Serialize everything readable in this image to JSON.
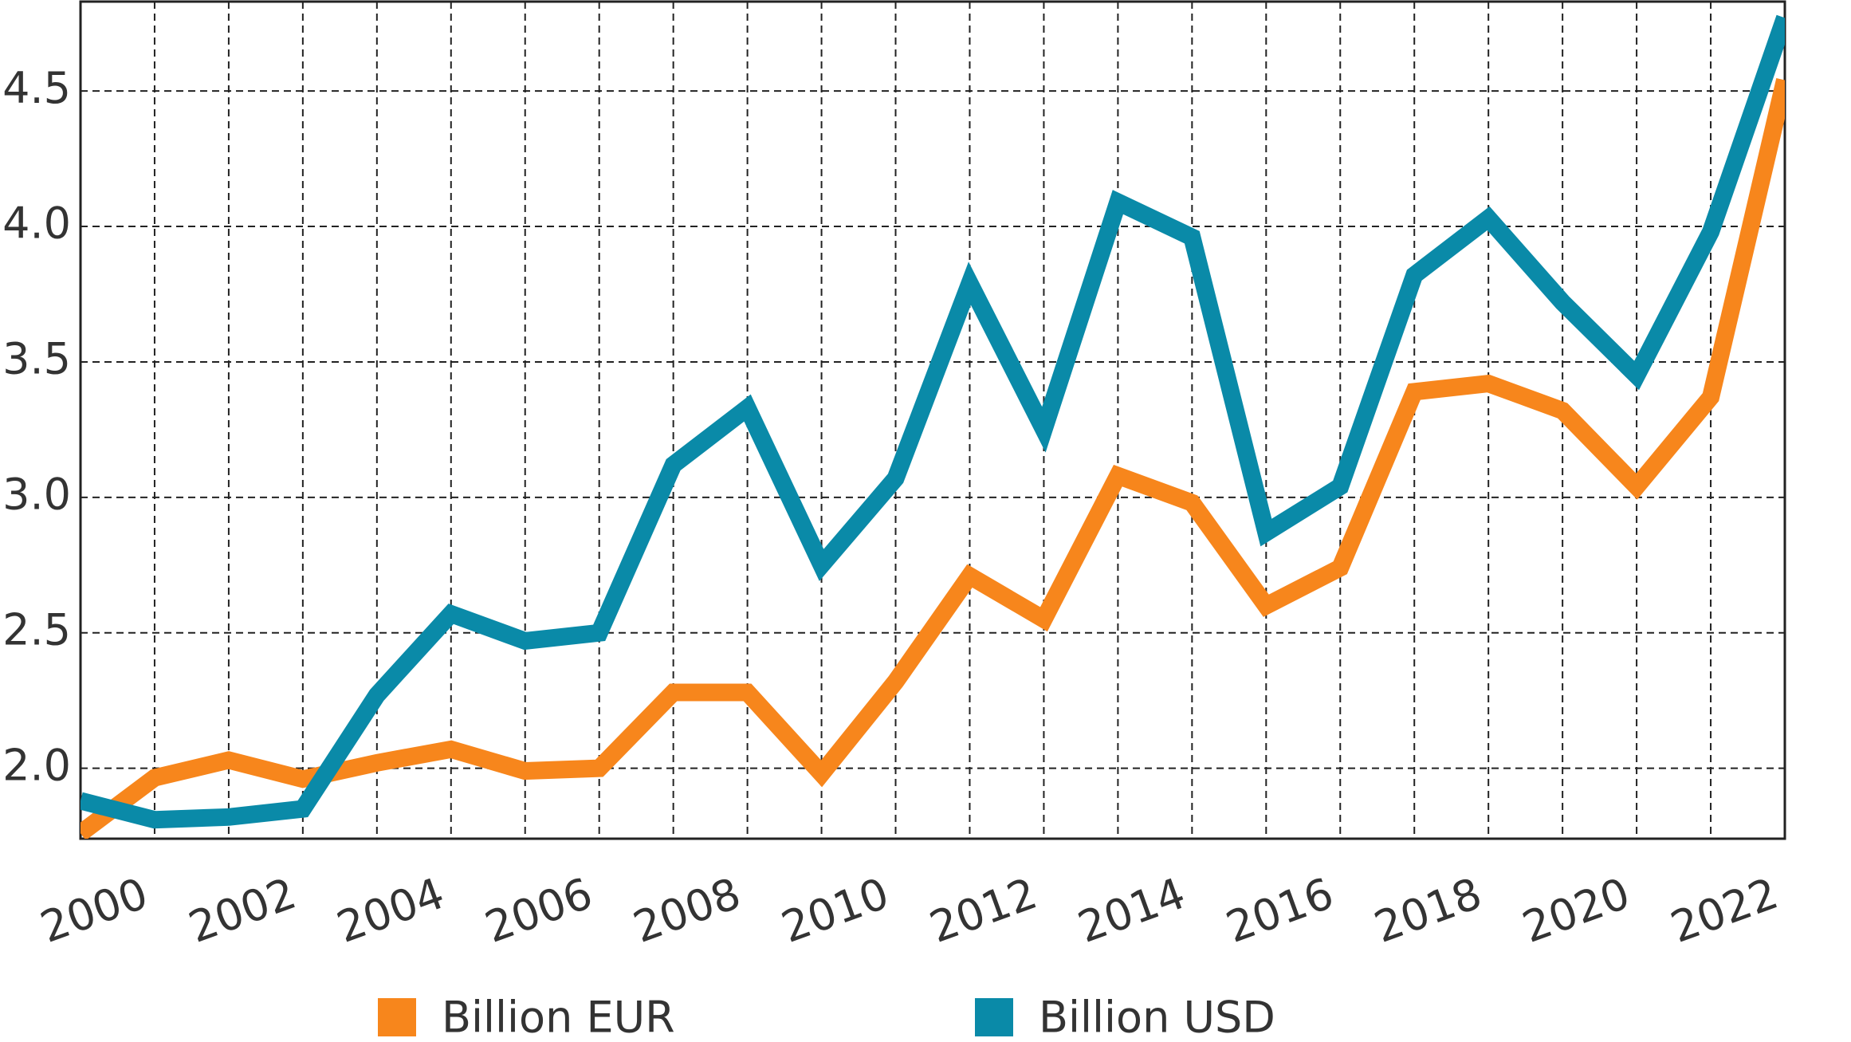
{
  "chart_data": {
    "type": "line",
    "x": [
      1999,
      2000,
      2001,
      2002,
      2003,
      2004,
      2005,
      2006,
      2007,
      2008,
      2009,
      2010,
      2011,
      2012,
      2013,
      2014,
      2015,
      2016,
      2017,
      2018,
      2019,
      2020,
      2021,
      2022
    ],
    "series": [
      {
        "name": "Billion EUR",
        "color": "#f7861c",
        "values": [
          1.76,
          1.965,
          2.03,
          1.96,
          2.02,
          2.07,
          1.99,
          2.0,
          2.28,
          2.28,
          1.98,
          2.32,
          2.71,
          2.55,
          3.08,
          2.98,
          2.6,
          2.74,
          3.39,
          3.42,
          3.32,
          3.04,
          3.37,
          4.54
        ]
      },
      {
        "name": "Billion USD",
        "color": "#0a8aa8",
        "values": [
          1.88,
          1.81,
          1.82,
          1.85,
          2.27,
          2.57,
          2.47,
          2.5,
          3.12,
          3.33,
          2.75,
          3.07,
          3.79,
          3.25,
          4.09,
          3.96,
          2.87,
          3.04,
          3.82,
          4.03,
          3.72,
          3.45,
          3.98,
          4.77
        ]
      }
    ],
    "xlim": [
      1999,
      2022
    ],
    "xticks": [
      2000,
      2002,
      2004,
      2006,
      2008,
      2010,
      2012,
      2014,
      2016,
      2018,
      2020,
      2022
    ],
    "xminorticks": [
      2001,
      2003,
      2005,
      2007,
      2009,
      2011,
      2013,
      2015,
      2017,
      2019,
      2021
    ],
    "ylim": [
      1.74,
      4.83
    ],
    "yticks": [
      {
        "value": 2,
        "label": "2.0"
      },
      2.5,
      {
        "value": 3,
        "label": "3.0"
      },
      3.5,
      {
        "value": 4,
        "label": "4.0"
      },
      4.5
    ],
    "grid": true,
    "legend": "bottom"
  }
}
